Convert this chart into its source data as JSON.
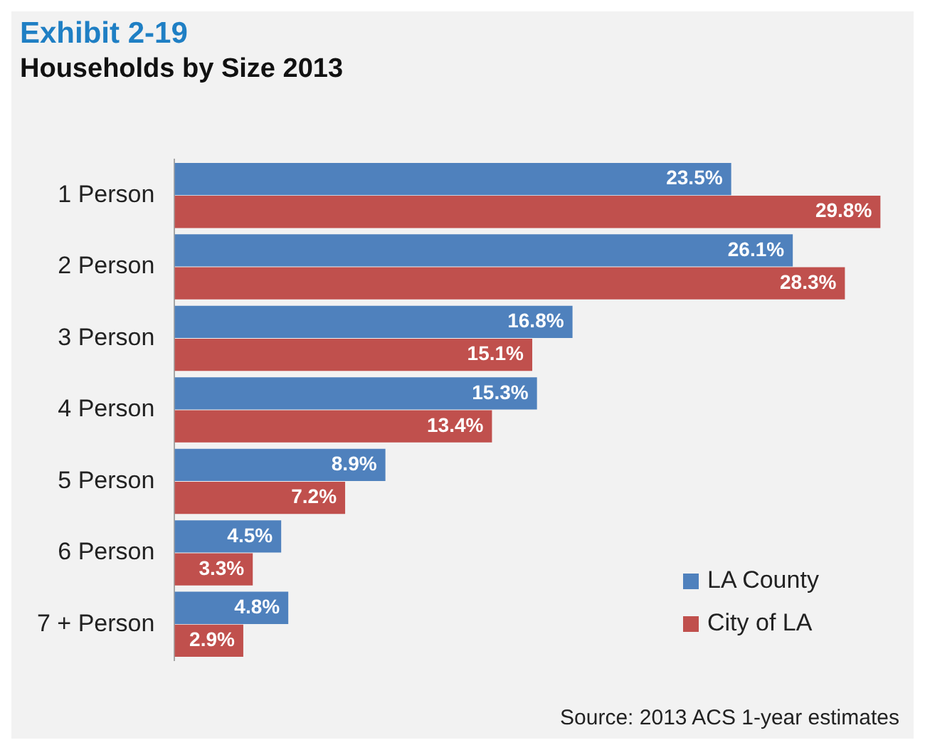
{
  "chart_data": {
    "type": "bar",
    "orientation": "horizontal",
    "title": "Exhibit 2-19",
    "subtitle": "Households by Size 2013",
    "categories": [
      "1 Person",
      "2 Person",
      "3 Person",
      "4 Person",
      "5 Person",
      "6 Person",
      "7 + Person"
    ],
    "series": [
      {
        "name": "LA County",
        "color": "#4f81bd",
        "values": [
          23.5,
          26.1,
          16.8,
          15.3,
          8.9,
          4.5,
          4.8
        ],
        "value_labels": [
          "23.5%",
          "26.1%",
          "16.8%",
          "15.3%",
          "8.9%",
          "4.5%",
          "4.8%"
        ]
      },
      {
        "name": "City of LA",
        "color": "#c0504d",
        "values": [
          29.8,
          28.3,
          15.1,
          13.4,
          7.2,
          3.3,
          2.9
        ],
        "value_labels": [
          "29.8%",
          "28.3%",
          "15.1%",
          "13.4%",
          "7.2%",
          "3.3%",
          "2.9%"
        ]
      }
    ],
    "legend": "bottom right",
    "annotations": [
      "Source: 2013 ACS 1-year estimates"
    ]
  }
}
